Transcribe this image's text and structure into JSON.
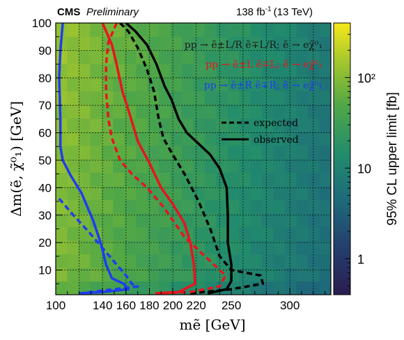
{
  "header": {
    "experiment": "CMS",
    "status": "Preliminary",
    "lumi": "138 fb",
    "lumi_exp": "-1",
    "energy": "(13 TeV)"
  },
  "legend": {
    "process_lines": [
      {
        "text": "pp → ẽ±L/R ẽ∓L/R; ẽ → eχ̃⁰₁",
        "color": "#1a1a1a"
      },
      {
        "text": "pp → ẽ±L ẽ∓L; ẽ → eχ̃⁰₁",
        "color": "#e8141e"
      },
      {
        "text": "pp → ẽ±R ẽ∓R; ẽ → eχ̃⁰₁",
        "color": "#1e3cf0"
      }
    ],
    "expected_label": "expected",
    "observed_label": "observed"
  },
  "colorbar": {
    "label": "95% CL upper limit [fb]",
    "ticks": [
      "1",
      "10",
      "10²"
    ]
  },
  "chart_data": {
    "type": "heatmap",
    "xlabel": "mẽ [GeV]",
    "ylabel": "Δm(ẽ, χ̃⁰₁) [GeV]",
    "xlim": [
      100,
      335
    ],
    "ylim": [
      1,
      100
    ],
    "x_ticks": [
      "100",
      "140",
      "160",
      "180",
      "200",
      "220",
      "250",
      "300"
    ],
    "y_ticks": [
      "10",
      "20",
      "30",
      "40",
      "50",
      "60",
      "70",
      "80",
      "90",
      "100"
    ],
    "z_range": [
      0.4,
      400
    ],
    "z_log": true,
    "grid": true,
    "series": [
      {
        "name": "pp → ẽ±L/R ẽ∓L/R",
        "style": "observed",
        "color": "#000000",
        "points": [
          [
            160,
            100
          ],
          [
            168,
            97
          ],
          [
            178,
            92
          ],
          [
            186,
            85
          ],
          [
            193,
            77
          ],
          [
            199,
            72
          ],
          [
            205,
            65
          ],
          [
            212,
            60
          ],
          [
            222,
            56
          ],
          [
            232,
            52
          ],
          [
            240,
            47
          ],
          [
            246,
            40
          ],
          [
            247,
            30
          ],
          [
            247,
            20
          ],
          [
            250,
            12
          ],
          [
            250,
            6
          ],
          [
            246,
            3
          ],
          [
            230,
            1.5
          ]
        ]
      },
      {
        "name": "pp → ẽ±L/R ẽ∓L/R",
        "style": "expected",
        "color": "#000000",
        "points": [
          [
            155,
            100
          ],
          [
            162,
            97
          ],
          [
            170,
            91
          ],
          [
            178,
            83
          ],
          [
            184,
            75
          ],
          [
            188,
            65
          ],
          [
            192,
            58
          ],
          [
            200,
            52
          ],
          [
            210,
            45
          ],
          [
            222,
            35
          ],
          [
            232,
            25
          ],
          [
            240,
            15
          ],
          [
            250,
            10
          ],
          [
            275,
            8
          ],
          [
            277,
            5
          ],
          [
            250,
            3
          ],
          [
            215,
            1.5
          ]
        ]
      },
      {
        "name": "pp → ẽ±L ẽ∓L",
        "style": "observed",
        "color": "#e8141e",
        "points": [
          [
            140,
            100
          ],
          [
            148,
            92
          ],
          [
            152,
            85
          ],
          [
            157,
            75
          ],
          [
            163,
            67
          ],
          [
            170,
            57
          ],
          [
            180,
            49
          ],
          [
            190,
            40
          ],
          [
            200,
            34
          ],
          [
            210,
            27
          ],
          [
            215,
            20
          ],
          [
            218,
            12
          ],
          [
            219,
            5
          ],
          [
            205,
            2
          ],
          [
            185,
            1.5
          ]
        ]
      },
      {
        "name": "pp → ẽ±L ẽ∓L",
        "style": "expected",
        "color": "#e8141e",
        "points": [
          [
            152,
            100
          ],
          [
            145,
            93
          ],
          [
            143,
            85
          ],
          [
            143,
            75
          ],
          [
            145,
            65
          ],
          [
            148,
            58
          ],
          [
            155,
            50
          ],
          [
            165,
            45
          ],
          [
            178,
            40
          ],
          [
            192,
            33
          ],
          [
            210,
            22
          ],
          [
            230,
            14
          ],
          [
            245,
            8
          ],
          [
            240,
            4
          ],
          [
            215,
            2
          ],
          [
            190,
            1.5
          ]
        ]
      },
      {
        "name": "pp → ẽ±R ẽ∓R",
        "style": "observed",
        "color": "#1e3cf0",
        "points": [
          [
            106,
            100
          ],
          [
            104,
            90
          ],
          [
            103,
            80
          ],
          [
            104,
            65
          ],
          [
            104,
            55
          ],
          [
            106,
            50
          ],
          [
            112,
            45
          ],
          [
            122,
            38
          ],
          [
            132,
            28
          ],
          [
            139,
            19
          ],
          [
            143,
            12
          ],
          [
            148,
            7
          ],
          [
            158,
            5
          ],
          [
            162,
            3
          ],
          [
            140,
            2
          ],
          [
            120,
            1.5
          ]
        ]
      },
      {
        "name": "pp → ẽ±R ẽ∓R",
        "style": "expected",
        "color": "#1e3cf0",
        "points": [
          [
            103,
            36
          ],
          [
            115,
            30
          ],
          [
            128,
            24
          ],
          [
            140,
            18
          ],
          [
            152,
            12
          ],
          [
            160,
            8
          ],
          [
            165,
            5
          ],
          [
            170,
            4
          ],
          [
            150,
            3
          ],
          [
            130,
            2
          ],
          [
            122,
            1.5
          ]
        ]
      }
    ]
  }
}
